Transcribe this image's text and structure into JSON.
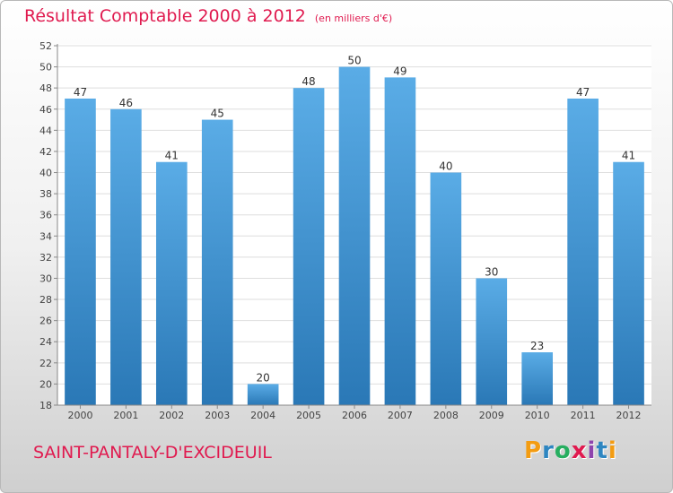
{
  "title": "Résultat Comptable 2000 à 2012",
  "unit": "(en milliers d'€)",
  "commune": "SAINT-PANTALY-D'EXCIDEUIL",
  "logo": {
    "text": "Proxiti",
    "letters": [
      {
        "char": "P",
        "color": "#f39c12"
      },
      {
        "char": "r",
        "color": "#2e86c1"
      },
      {
        "char": "o",
        "color": "#27ae60"
      },
      {
        "char": "x",
        "color": "#e01a4f"
      },
      {
        "char": "i",
        "color": "#8e44ad"
      },
      {
        "char": "t",
        "color": "#2e86c1"
      },
      {
        "char": "i",
        "color": "#f39c12"
      }
    ]
  },
  "colors": {
    "title": "#e01a4f",
    "bar_top": "#5aace6",
    "bar_bottom": "#2a78b6",
    "grid": "#dedede",
    "axis": "#888888"
  },
  "chart_data": {
    "type": "bar",
    "title": "Résultat Comptable 2000 à 2012",
    "subtitle": "(en milliers d'€)",
    "xlabel": "",
    "ylabel": "",
    "categories": [
      "2000",
      "2001",
      "2002",
      "2003",
      "2004",
      "2005",
      "2006",
      "2007",
      "2008",
      "2009",
      "2010",
      "2011",
      "2012"
    ],
    "values": [
      47,
      46,
      41,
      45,
      20,
      48,
      50,
      49,
      40,
      30,
      23,
      47,
      41
    ],
    "ylim": [
      18,
      52
    ],
    "yticks": [
      18,
      20,
      22,
      24,
      26,
      28,
      30,
      32,
      34,
      36,
      38,
      40,
      42,
      44,
      46,
      48,
      50,
      52
    ],
    "grid": true,
    "data_labels": true
  }
}
